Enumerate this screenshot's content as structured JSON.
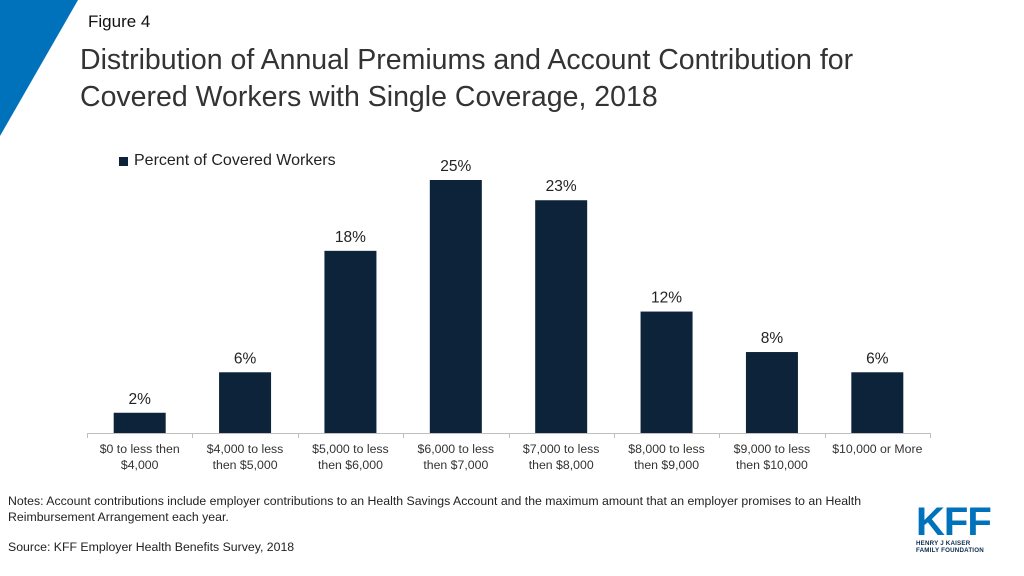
{
  "figure_label": "Figure 4",
  "title_lines": [
    "Distribution of Annual Premiums and Account Contribution for",
    "Covered Workers with Single Coverage, 2018"
  ],
  "colors": {
    "bar": "#0c2339",
    "accent": "#0072bc",
    "axis": "#bfbfbf"
  },
  "chart_data": {
    "type": "bar",
    "categories": [
      [
        "$0 to less then",
        "$4,000"
      ],
      [
        "$4,000 to less",
        "then $5,000"
      ],
      [
        "$5,000 to less",
        "then $6,000"
      ],
      [
        "$6,000 to less",
        "then $7,000"
      ],
      [
        "$7,000 to less",
        "then $8,000"
      ],
      [
        "$8,000 to less",
        "then $9,000"
      ],
      [
        "$9,000 to less",
        "then $10,000"
      ],
      [
        "$10,000 or More"
      ]
    ],
    "series": [
      {
        "name": "Percent of Covered Workers",
        "values": [
          2,
          6,
          18,
          25,
          23,
          12,
          8,
          6
        ]
      }
    ],
    "value_suffix": "%",
    "ylim": [
      0,
      25
    ],
    "legend_position": "top-left",
    "grid": false
  },
  "legend_label": "Percent of Covered Workers",
  "notes": "Notes: Account contributions include employer contributions to an Health Savings Account and the maximum amount that an employer promises to an Health Reimbursement Arrangement each year.",
  "source": "Source: KFF Employer Health Benefits Survey, 2018",
  "logo": {
    "text": "KFF",
    "sub_line1": "HENRY J KAISER",
    "sub_line2": "FAMILY FOUNDATION"
  }
}
